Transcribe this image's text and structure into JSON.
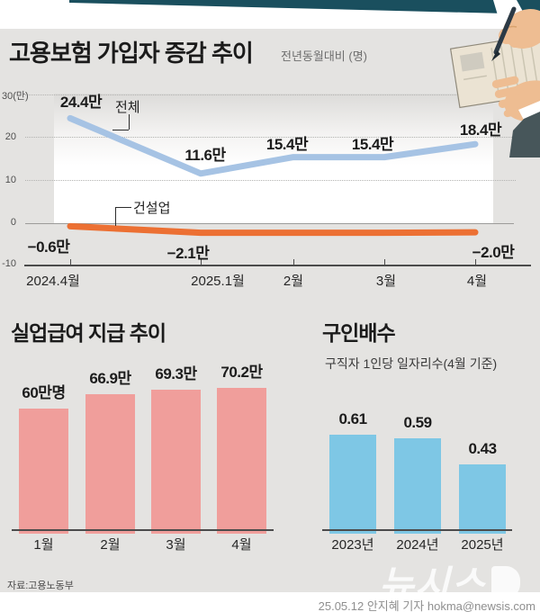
{
  "header": {
    "title": "고용보험 가입자 증감 추이",
    "subtitle": "전년동월대비 (명)"
  },
  "colors": {
    "panel_bg": "#e4e3e1",
    "total_line": "#a6c3e4",
    "construction_line": "#ec7033",
    "unemployment_bar": "#f09e9b",
    "ratio_bar": "#7ec7e5"
  },
  "chart_data": [
    {
      "type": "line",
      "title": "고용보험 가입자 증감 추이",
      "subtitle": "전년동월대비 (명)",
      "unit": "만 (10,000 persons)",
      "x": [
        "2024.4월",
        "2025.1월",
        "2월",
        "3월",
        "4월"
      ],
      "ylim": [
        -10,
        30
      ],
      "y_ticks": [
        "30(만)",
        "20",
        "10",
        "0",
        "-10"
      ],
      "grid": "dotted-horizontal",
      "series": [
        {
          "name": "전체",
          "color": "#a6c3e4",
          "values": [
            24.4,
            11.6,
            15.4,
            15.4,
            18.4
          ],
          "point_labels": [
            "24.4만",
            "11.6만",
            "15.4만",
            "15.4만",
            "18.4만"
          ]
        },
        {
          "name": "건설업",
          "color": "#ec7033",
          "values": [
            -0.6,
            -2.1,
            -2.1,
            -2.1,
            -2.0
          ],
          "point_labels": [
            "−0.6만",
            "−2.1만",
            "",
            "",
            "−2.0만"
          ]
        }
      ]
    },
    {
      "type": "bar",
      "title": "실업급여 지급 추이",
      "categories": [
        "1월",
        "2월",
        "3월",
        "4월"
      ],
      "values": [
        60,
        66.9,
        69.3,
        70.2
      ],
      "value_labels": [
        "60만명",
        "66.9만",
        "69.3만",
        "70.2만"
      ],
      "bar_color": "#f09e9b"
    },
    {
      "type": "bar",
      "title": "구인배수",
      "subtitle": "구직자 1인당 일자리수(4월 기준)",
      "categories": [
        "2023년",
        "2024년",
        "2025년"
      ],
      "values": [
        0.61,
        0.59,
        0.43
      ],
      "value_labels": [
        "0.61",
        "0.59",
        "0.43"
      ],
      "bar_color": "#7ec7e5"
    }
  ],
  "footer": {
    "source": "자료:고용노동부",
    "watermark": "뉴시스",
    "credit": "25.05.12 안지혜 기자 hokma@newsis.com"
  }
}
